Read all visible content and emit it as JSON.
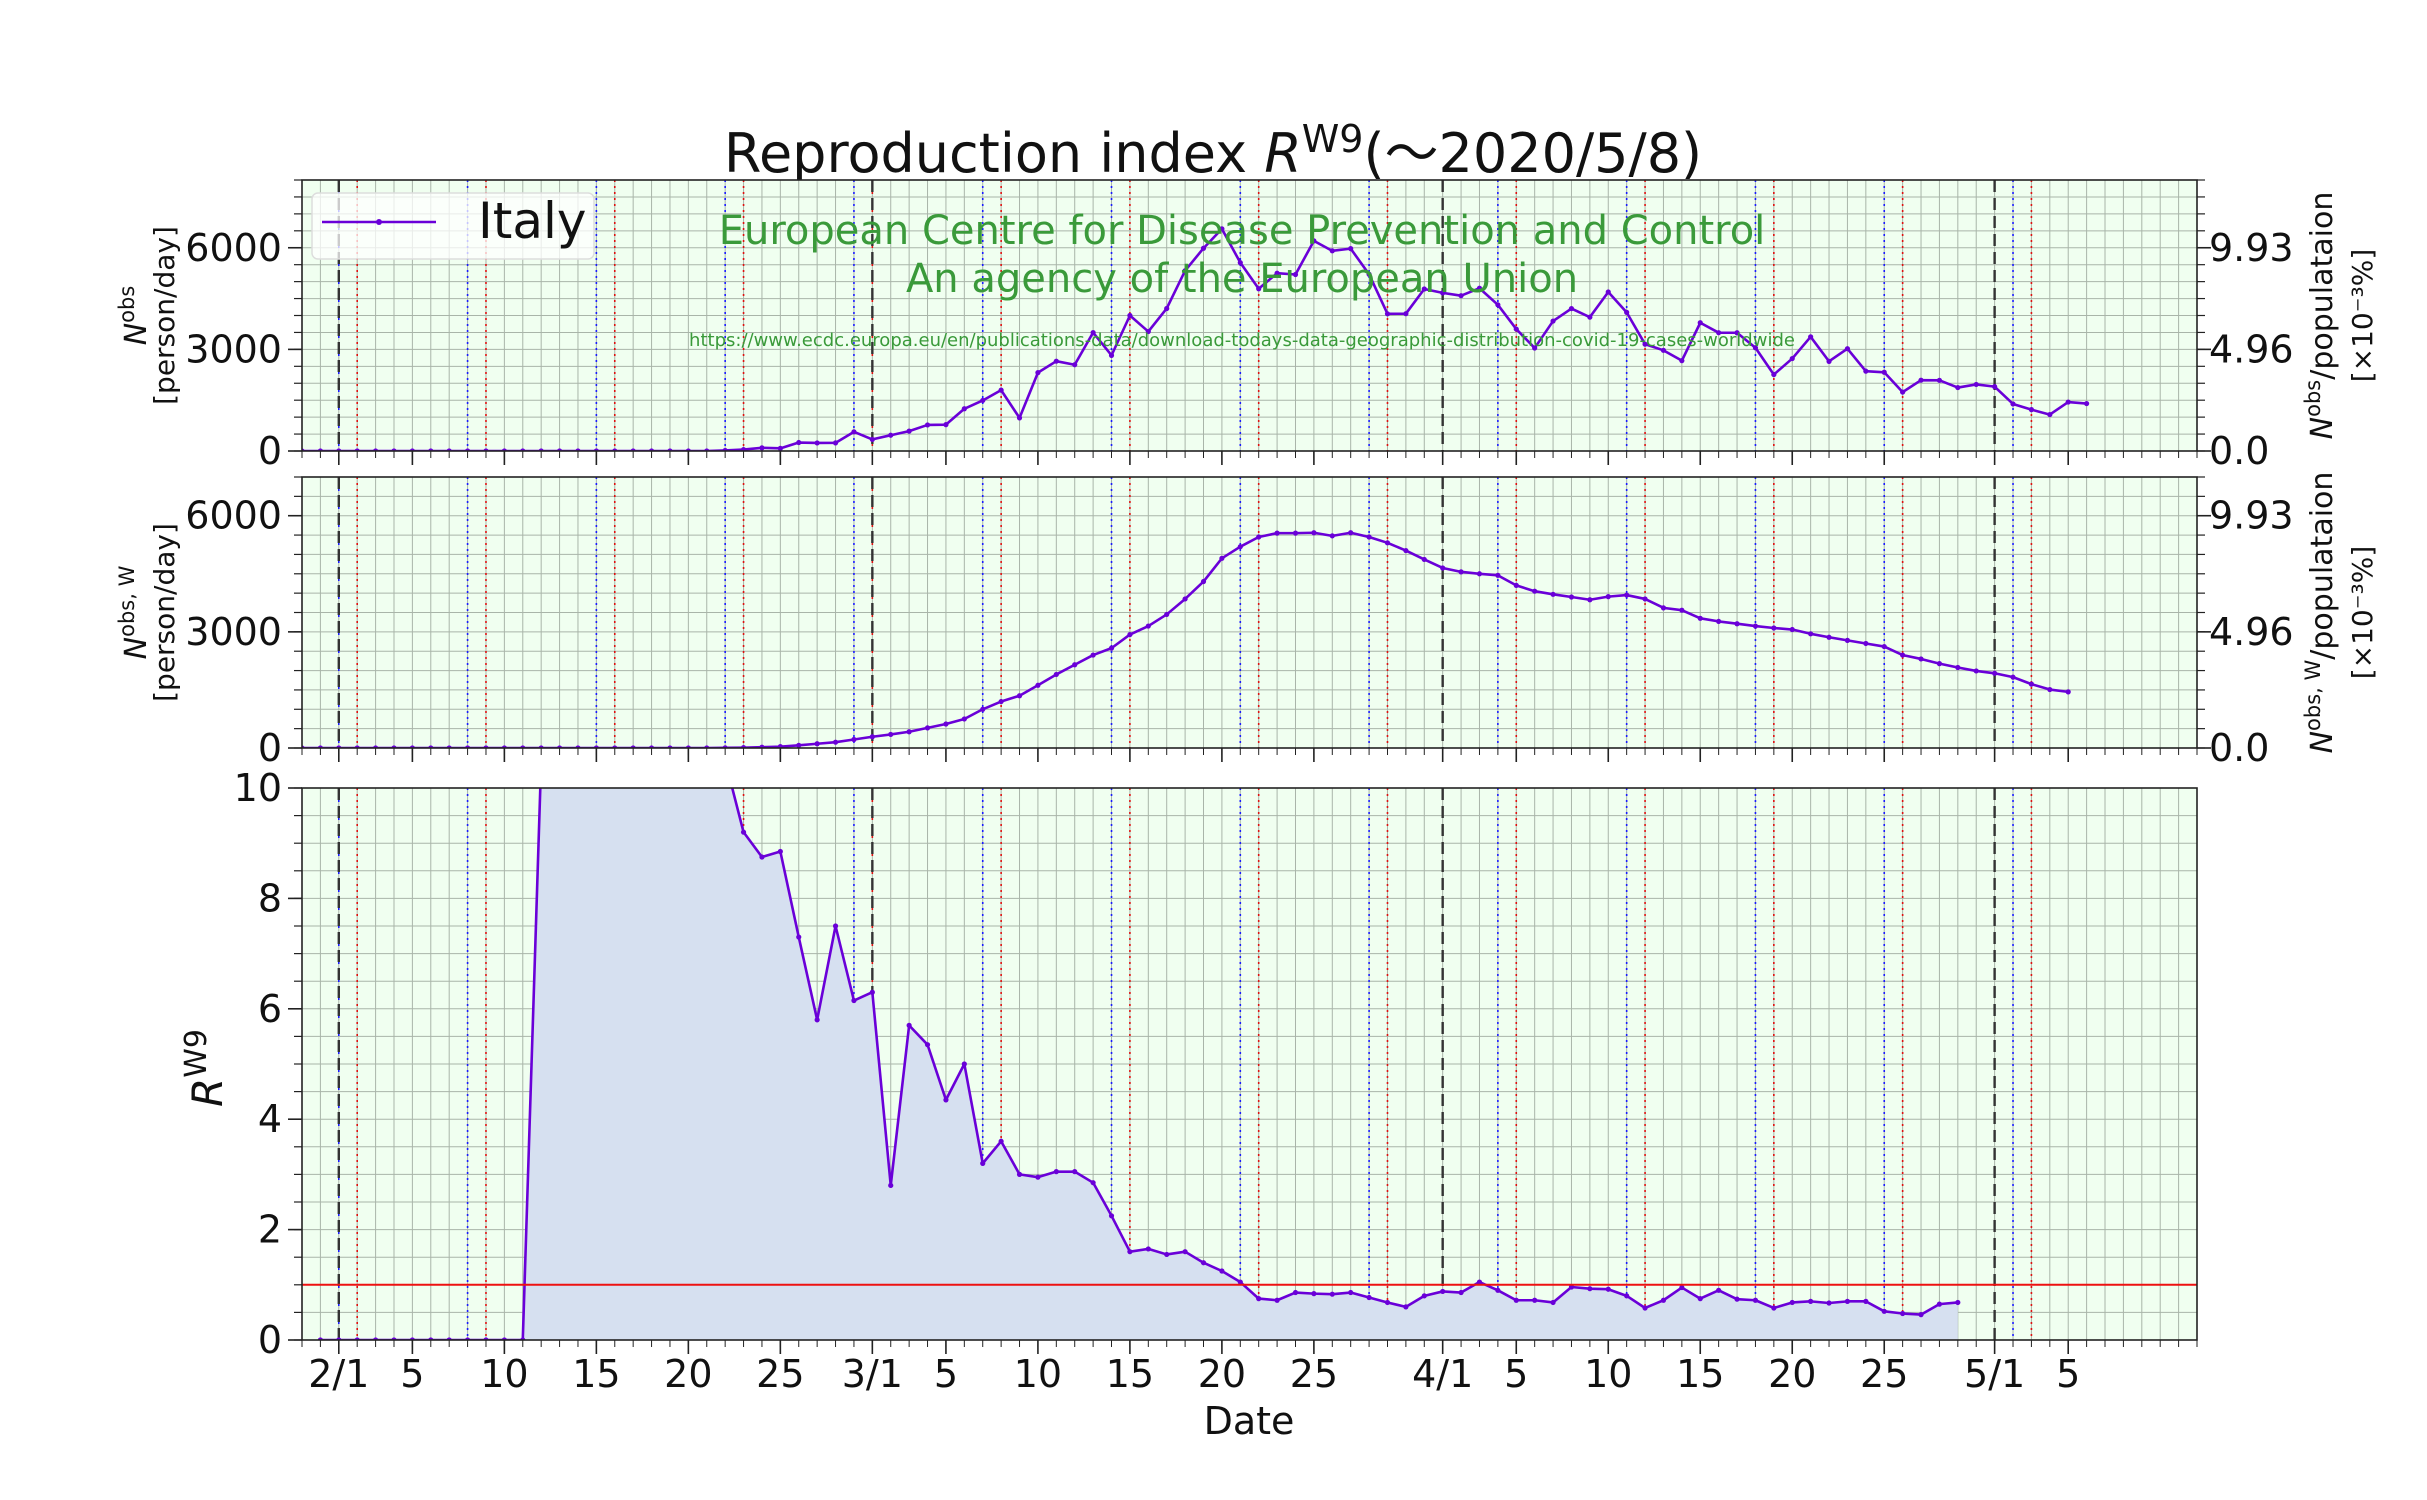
{
  "chart_data": {
    "type": "line",
    "title": {
      "prefix": "Reproduction index ",
      "symbol": "R",
      "superscript": "W9",
      "suffix": "(～2020/5/8)"
    },
    "source": {
      "line1": "European Centre for Disease Prevention and Control",
      "line2": "An agency of the European Union",
      "url": "https://www.ecdc.europa.eu/en/publications-data/download-todays-data-geographic-distribution-covid-19-cases-worldwide"
    },
    "legend": {
      "label": "Italy",
      "position": "top-left"
    },
    "xlabel": "Date",
    "x_range": [
      "2020-01-30",
      "2020-05-12"
    ],
    "x_ticks": [
      {
        "date": "2020-02-01",
        "label": "2/1"
      },
      {
        "date": "2020-02-05",
        "label": "5"
      },
      {
        "date": "2020-02-10",
        "label": "10"
      },
      {
        "date": "2020-02-15",
        "label": "15"
      },
      {
        "date": "2020-02-20",
        "label": "20"
      },
      {
        "date": "2020-02-25",
        "label": "25"
      },
      {
        "date": "2020-03-01",
        "label": "3/1"
      },
      {
        "date": "2020-03-05",
        "label": "5"
      },
      {
        "date": "2020-03-10",
        "label": "10"
      },
      {
        "date": "2020-03-15",
        "label": "15"
      },
      {
        "date": "2020-03-20",
        "label": "20"
      },
      {
        "date": "2020-03-25",
        "label": "25"
      },
      {
        "date": "2020-04-01",
        "label": "4/1"
      },
      {
        "date": "2020-04-05",
        "label": "5"
      },
      {
        "date": "2020-04-10",
        "label": "10"
      },
      {
        "date": "2020-04-15",
        "label": "15"
      },
      {
        "date": "2020-04-20",
        "label": "20"
      },
      {
        "date": "2020-04-25",
        "label": "25"
      },
      {
        "date": "2020-05-01",
        "label": "5/1"
      },
      {
        "date": "2020-05-05",
        "label": "5"
      }
    ],
    "month_lines": [
      "2020-02-01",
      "2020-03-01",
      "2020-04-01",
      "2020-05-01"
    ],
    "saturday_lines": [
      "2020-02-01",
      "2020-02-08",
      "2020-02-15",
      "2020-02-22",
      "2020-02-29",
      "2020-03-07",
      "2020-03-14",
      "2020-03-21",
      "2020-03-28",
      "2020-04-04",
      "2020-04-11",
      "2020-04-18",
      "2020-04-25",
      "2020-05-02"
    ],
    "sunday_lines": [
      "2020-02-02",
      "2020-02-09",
      "2020-02-16",
      "2020-02-23",
      "2020-03-01",
      "2020-03-08",
      "2020-03-15",
      "2020-03-22",
      "2020-03-29",
      "2020-04-05",
      "2020-04-12",
      "2020-04-19",
      "2020-04-26",
      "2020-05-03"
    ],
    "panels": [
      {
        "id": "daily",
        "ylabel_symbol": "N",
        "ylabel_sup": "obs",
        "ylabel_unit": "[person/day]",
        "y2label_symbol": "N",
        "y2label_sup": "obs",
        "y2label_mid": "/populataion",
        "y2label_unit": "[×10⁻³%]",
        "ylim": [
          0,
          8000
        ],
        "yticks": [
          {
            "v": 0,
            "label": "0"
          },
          {
            "v": 3000,
            "label": "3000"
          },
          {
            "v": 6000,
            "label": "6000"
          }
        ],
        "y2ticks": [
          {
            "v": 0,
            "label": "0.0"
          },
          {
            "v": 3000,
            "label": "4.96"
          },
          {
            "v": 6000,
            "label": "9.93"
          }
        ],
        "start_date": "2020-01-30",
        "values": [
          0,
          0,
          0,
          0,
          0,
          0,
          0,
          0,
          0,
          0,
          0,
          0,
          0,
          0,
          0,
          0,
          0,
          0,
          0,
          0,
          0,
          0,
          0,
          17,
          42,
          93,
          78,
          250,
          238,
          240,
          566,
          342,
          466,
          587,
          769,
          778,
          1247,
          1492,
          1797,
          977,
          2313,
          2651,
          2547,
          3497,
          2823,
          4000,
          3526,
          4207,
          5322,
          5986,
          6557,
          5560,
          4789,
          5249,
          5210,
          6203,
          5909,
          5974,
          5217,
          4050,
          4053,
          4782,
          4668,
          4585,
          4805,
          4316,
          3599,
          3039,
          3836,
          4204,
          3951,
          4694,
          4092,
          3153,
          2972,
          2667,
          3786,
          3493,
          3491,
          3047,
          2256,
          2729,
          3370,
          2646,
          3021,
          2357,
          2324,
          1739,
          2091,
          2086,
          1872,
          1965,
          1900,
          1389,
          1221,
          1075,
          1444,
          1401
        ],
        "color": "#6a00d8"
      },
      {
        "id": "weekly",
        "ylabel_symbol": "N",
        "ylabel_sup": "obs, W",
        "ylabel_unit": "[person/day]",
        "y2label_symbol": "N",
        "y2label_sup": "obs, W",
        "y2label_mid": "/populataion",
        "y2label_unit": "[×10⁻³%]",
        "ylim": [
          0,
          7000
        ],
        "yticks": [
          {
            "v": 0,
            "label": "0"
          },
          {
            "v": 3000,
            "label": "3000"
          },
          {
            "v": 6000,
            "label": "6000"
          }
        ],
        "y2ticks": [
          {
            "v": 0,
            "label": "0.0"
          },
          {
            "v": 3000,
            "label": "4.96"
          },
          {
            "v": 6000,
            "label": "9.93"
          }
        ],
        "start_date": "2020-01-30",
        "values": [
          0,
          0,
          0,
          0,
          0,
          0,
          0,
          0,
          0,
          0,
          0,
          0,
          0,
          0,
          0,
          0,
          0,
          0,
          0,
          0,
          0,
          0,
          0,
          5,
          10,
          20,
          35,
          70,
          110,
          150,
          220,
          290,
          350,
          420,
          520,
          620,
          750,
          1000,
          1200,
          1350,
          1620,
          1900,
          2150,
          2400,
          2580,
          2930,
          3150,
          3450,
          3850,
          4300,
          4900,
          5200,
          5450,
          5550,
          5550,
          5560,
          5480,
          5560,
          5450,
          5300,
          5100,
          4870,
          4650,
          4550,
          4500,
          4460,
          4200,
          4050,
          3970,
          3900,
          3830,
          3910,
          3950,
          3850,
          3620,
          3560,
          3350,
          3270,
          3210,
          3150,
          3100,
          3060,
          2950,
          2860,
          2780,
          2700,
          2620,
          2400,
          2300,
          2180,
          2080,
          1990,
          1930,
          1830,
          1650,
          1510,
          1450
        ]
      },
      {
        "id": "rw9",
        "ylabel_symbol": "R",
        "ylabel_sup": "W9",
        "ylim": [
          0,
          10
        ],
        "yticks": [
          {
            "v": 0,
            "label": "0"
          },
          {
            "v": 2,
            "label": "2"
          },
          {
            "v": 4,
            "label": "4"
          },
          {
            "v": 6,
            "label": "6"
          },
          {
            "v": 8,
            "label": "8"
          },
          {
            "v": 10,
            "label": "10"
          }
        ],
        "reference_line": 1,
        "start_date": "2020-01-31",
        "values": [
          0,
          0,
          0,
          0,
          0,
          0,
          0,
          0,
          0,
          0,
          0,
          0,
          10.5,
          10.5,
          10.5,
          10.5,
          10.5,
          10.5,
          10.5,
          10.5,
          10.5,
          10.5,
          10.5,
          9.2,
          8.75,
          8.85,
          7.3,
          5.8,
          7.5,
          6.15,
          6.3,
          2.8,
          5.7,
          5.35,
          4.35,
          5.0,
          3.2,
          3.6,
          3.0,
          2.95,
          3.05,
          3.05,
          2.85,
          2.25,
          1.6,
          1.65,
          1.55,
          1.6,
          1.4,
          1.25,
          1.05,
          0.75,
          0.72,
          0.86,
          0.84,
          0.83,
          0.86,
          0.77,
          0.68,
          0.6,
          0.8,
          0.88,
          0.86,
          1.05,
          0.9,
          0.72,
          0.72,
          0.68,
          0.96,
          0.93,
          0.92,
          0.8,
          0.58,
          0.72,
          0.95,
          0.75,
          0.9,
          0.74,
          0.72,
          0.58,
          0.68,
          0.7,
          0.67,
          0.7,
          0.7,
          0.52,
          0.48,
          0.46,
          0.65,
          0.68
        ]
      }
    ]
  }
}
